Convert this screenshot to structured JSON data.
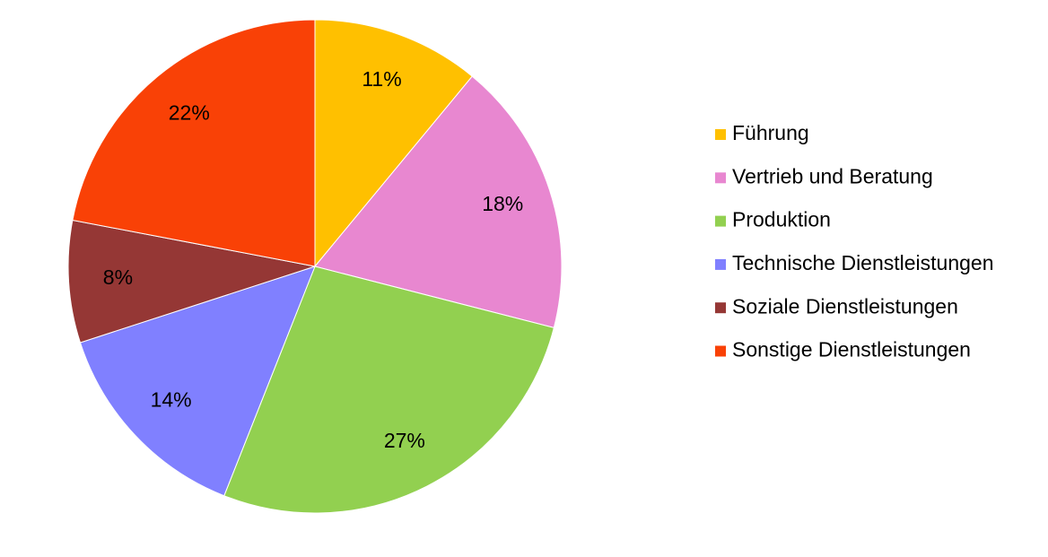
{
  "chart_data": {
    "type": "pie",
    "categories": [
      "Führung",
      "Vertrieb und Beratung",
      "Produktion",
      "Technische Dienstleistungen",
      "Soziale Dienstleistungen",
      "Sonstige Dienstleistungen"
    ],
    "values": [
      11,
      18,
      27,
      14,
      8,
      22
    ],
    "value_labels": [
      "11%",
      "18%",
      "27%",
      "14%",
      "8%",
      "22%"
    ],
    "colors": [
      "#ffc000",
      "#e887d0",
      "#92d050",
      "#8080ff",
      "#953735",
      "#f94106"
    ],
    "legend": "right"
  }
}
